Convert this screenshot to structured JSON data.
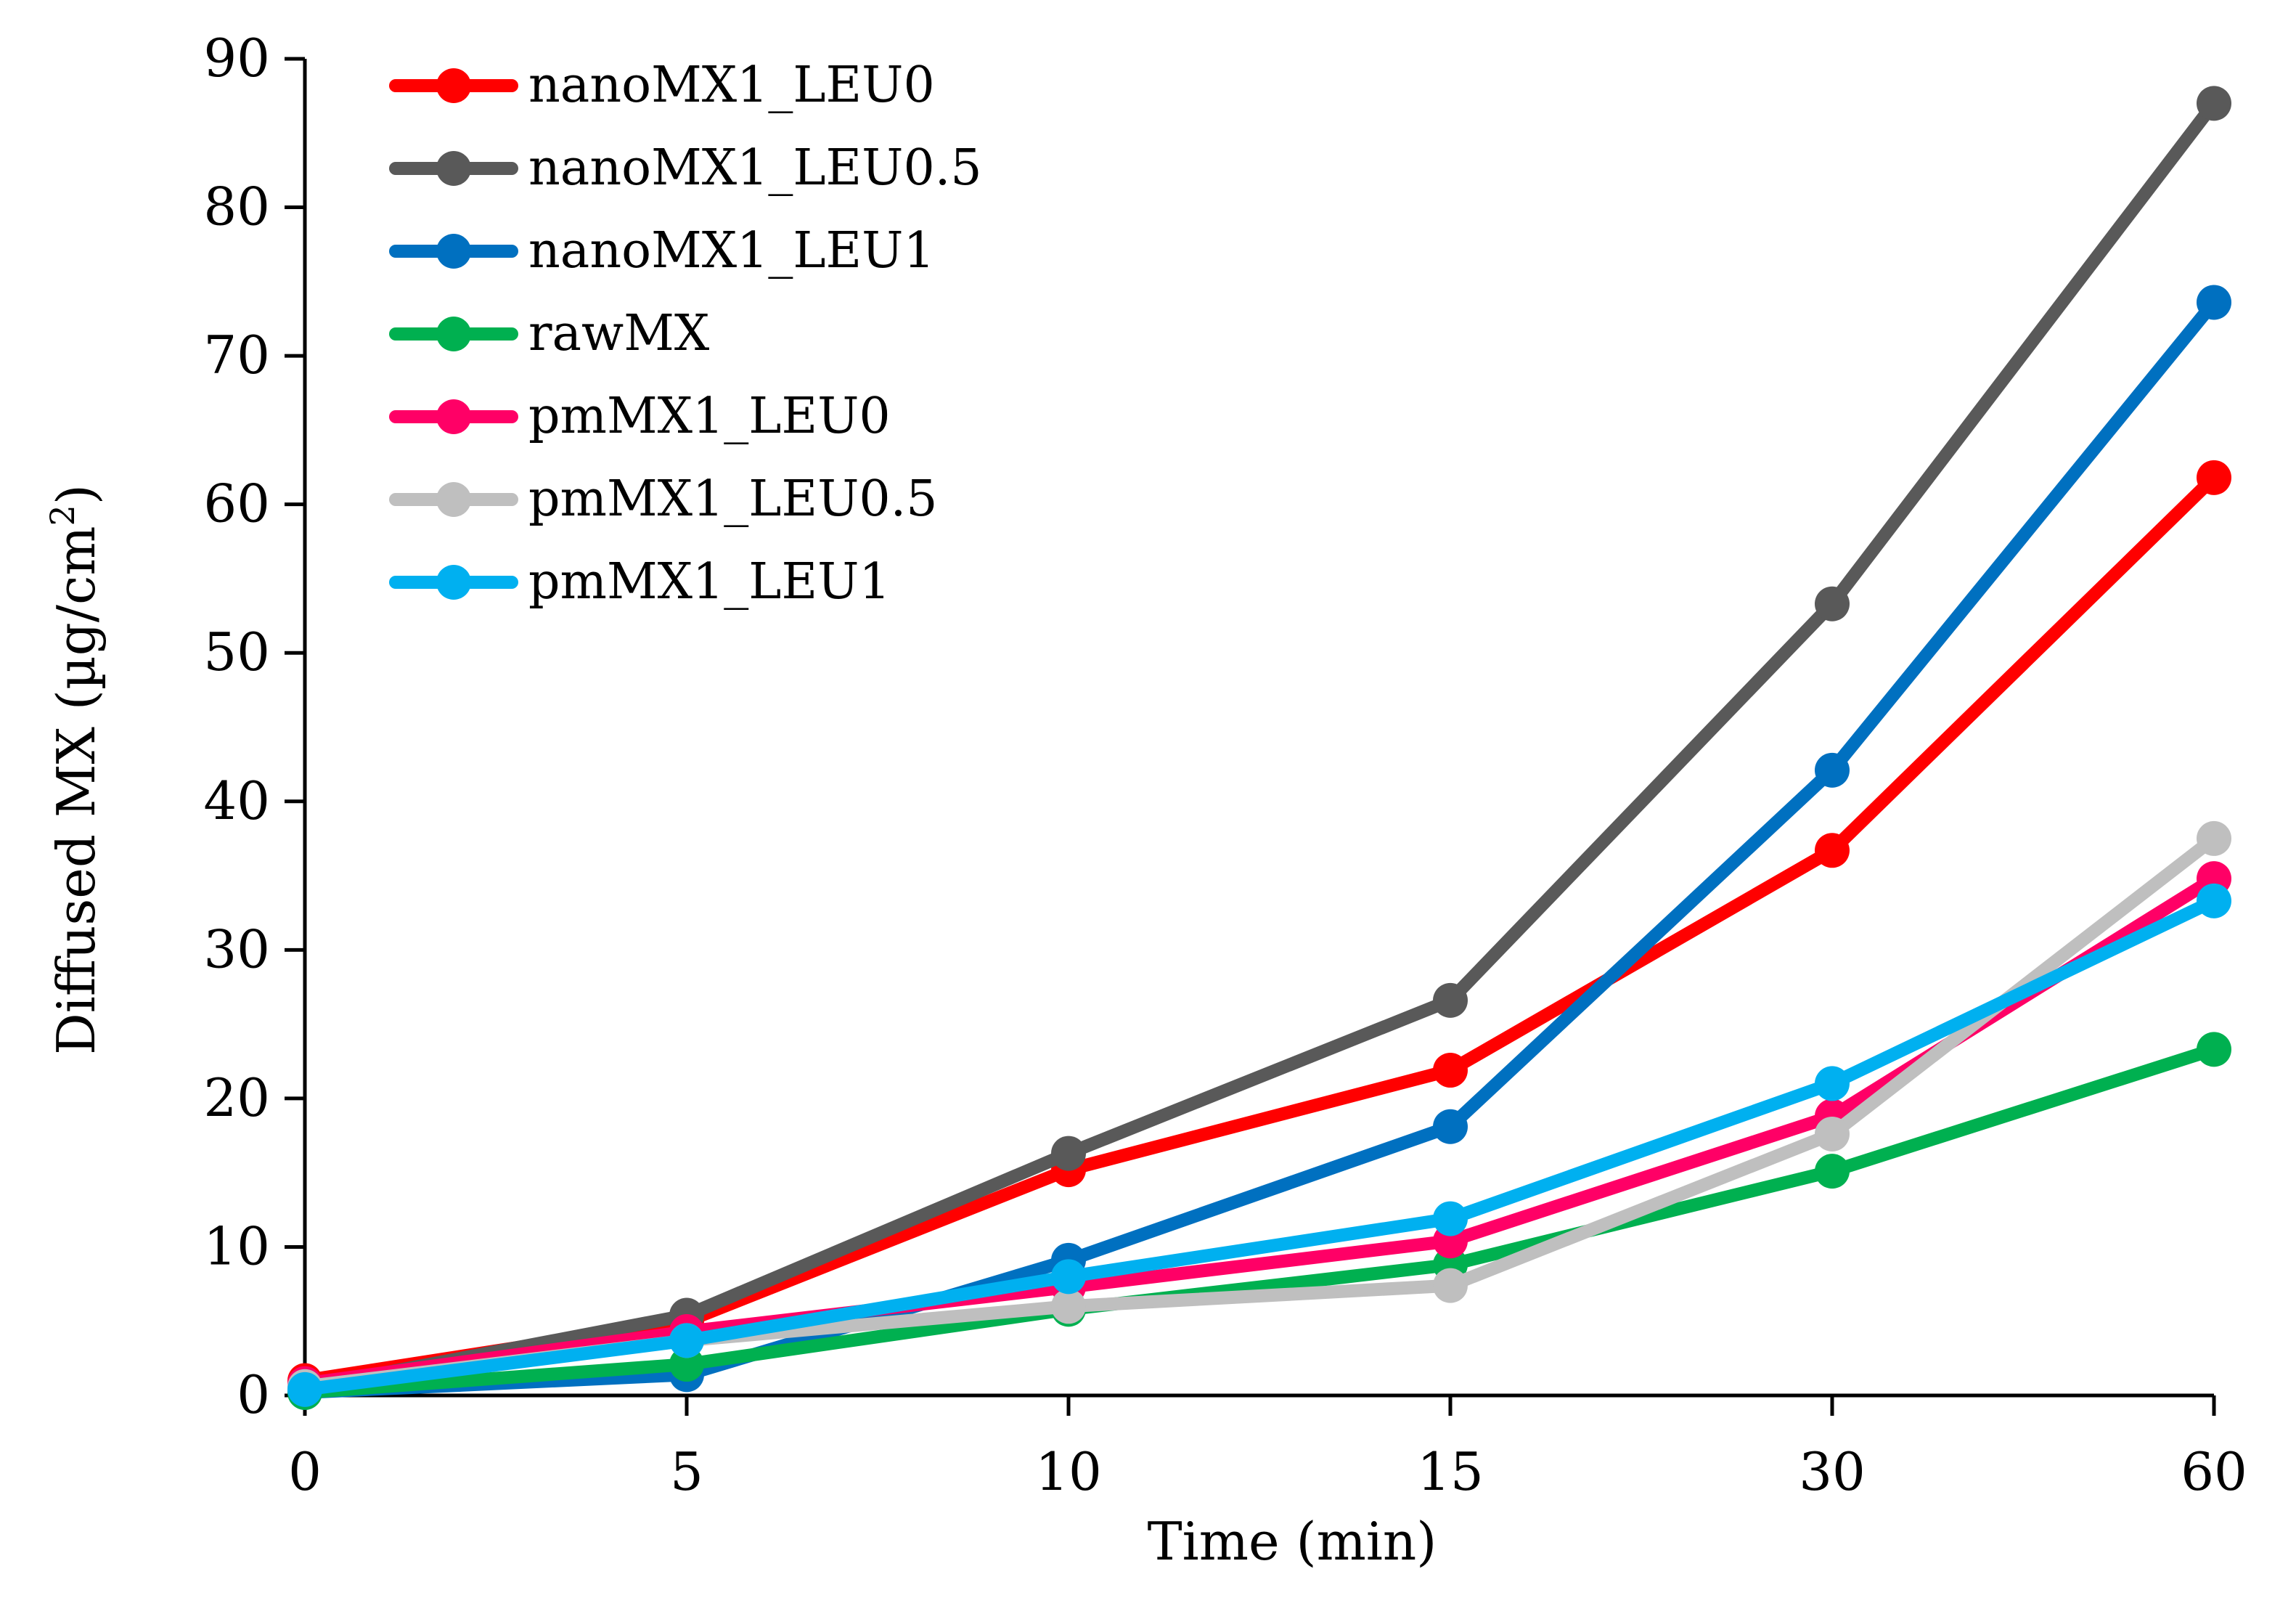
{
  "chart_data": {
    "type": "line",
    "title": "",
    "xlabel": "Time (min)",
    "ylabel": "Diffused MX (µg/cm²)",
    "ylabel_main": "Diffused MX (µg/cm",
    "ylabel_sup": "2",
    "ylabel_tail": ")",
    "categories": [
      "0",
      "5",
      "10",
      "15",
      "30",
      "60"
    ],
    "ylim": [
      0,
      90
    ],
    "yticks": [
      "0",
      "10",
      "20",
      "30",
      "40",
      "50",
      "60",
      "70",
      "80",
      "90"
    ],
    "legend_position": "top-left",
    "series": [
      {
        "name": "nanoMX1_LEU0",
        "color": "#ff0000",
        "values": [
          1.0,
          5.0,
          15.2,
          21.9,
          36.7,
          61.8
        ]
      },
      {
        "name": "nanoMX1_LEU0.5",
        "color": "#595959",
        "values": [
          0.5,
          5.4,
          16.3,
          26.6,
          53.3,
          87.0
        ]
      },
      {
        "name": "nanoMX1_LEU1",
        "color": "#0070c0",
        "values": [
          0.2,
          1.4,
          9.1,
          18.1,
          42.1,
          73.6
        ]
      },
      {
        "name": "rawMX",
        "color": "#00b050",
        "values": [
          0.2,
          2.1,
          5.8,
          8.8,
          15.1,
          23.3
        ]
      },
      {
        "name": "pmMX1_LEU0",
        "color": "#ff0066",
        "values": [
          0.8,
          4.3,
          7.3,
          10.4,
          18.8,
          34.8
        ]
      },
      {
        "name": "pmMX1_LEU0.5",
        "color": "#bfbfbf",
        "values": [
          0.6,
          3.7,
          6.0,
          7.4,
          17.6,
          37.5
        ]
      },
      {
        "name": "pmMX1_LEU1",
        "color": "#00b0f0",
        "values": [
          0.4,
          3.7,
          8.0,
          11.9,
          21.0,
          33.3
        ]
      }
    ]
  }
}
